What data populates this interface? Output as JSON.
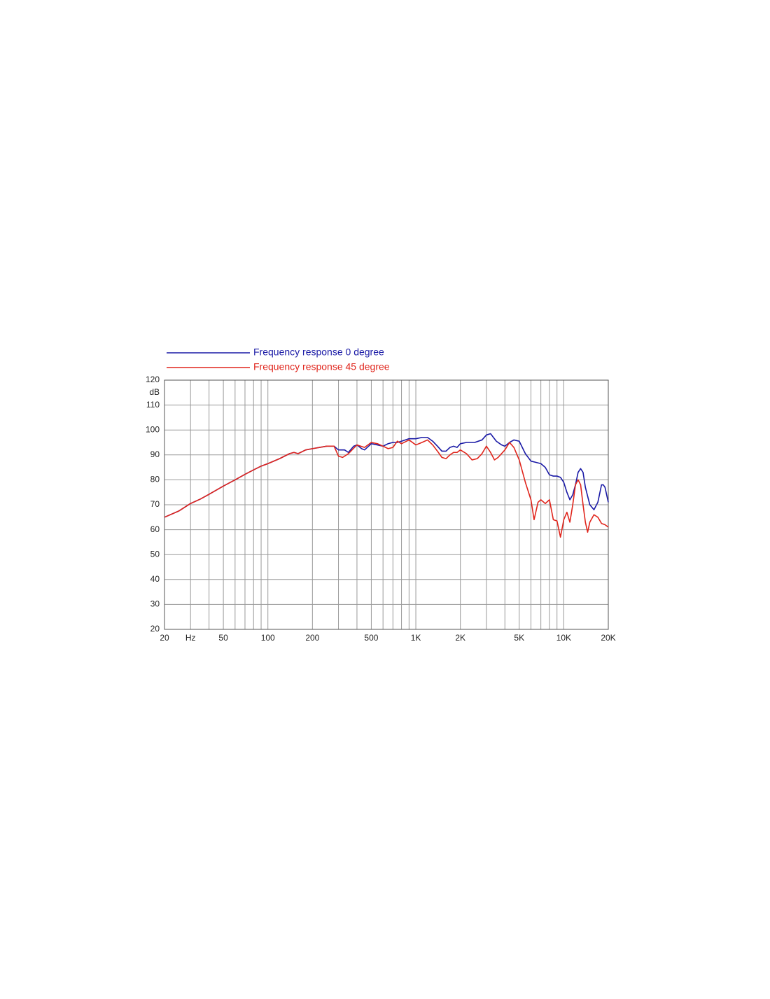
{
  "chart_data": {
    "type": "line",
    "ylabel": "dB",
    "log_x": true,
    "grid": true,
    "xlim": [
      20,
      20000
    ],
    "ylim": [
      20,
      120
    ],
    "xticks": [
      20,
      {
        "value": 30,
        "label": "Hz"
      },
      50,
      100,
      200,
      500,
      {
        "value": 1000,
        "label": "1K"
      },
      {
        "value": 2000,
        "label": "2K"
      },
      {
        "value": 5000,
        "label": "5K"
      },
      {
        "value": 10000,
        "label": "10K"
      },
      {
        "value": 20000,
        "label": "20K"
      }
    ],
    "xgrid_minor": [
      40,
      60,
      70,
      80,
      90,
      300,
      400,
      600,
      700,
      800,
      900,
      3000,
      4000,
      6000,
      7000,
      8000,
      9000
    ],
    "yticks": [
      20,
      30,
      40,
      50,
      60,
      70,
      80,
      90,
      100,
      110,
      120
    ],
    "series": [
      {
        "name": "Frequency response 0 degree",
        "color": "#1a1aa6",
        "x": [
          20,
          25,
          30,
          35,
          40,
          50,
          60,
          70,
          80,
          90,
          100,
          120,
          140,
          150,
          160,
          180,
          200,
          250,
          280,
          300,
          330,
          350,
          380,
          400,
          430,
          450,
          500,
          550,
          600,
          650,
          700,
          750,
          800,
          900,
          1000,
          1100,
          1200,
          1300,
          1400,
          1500,
          1600,
          1700,
          1800,
          1900,
          2000,
          2200,
          2500,
          2800,
          3000,
          3200,
          3500,
          3800,
          4000,
          4300,
          4600,
          5000,
          5500,
          6000,
          6500,
          7000,
          7500,
          8000,
          8500,
          9000,
          9500,
          10000,
          10500,
          11000,
          11500,
          12000,
          12500,
          13000,
          13500,
          14000,
          15000,
          16000,
          17000,
          18000,
          18500,
          19000,
          20000
        ],
        "values": [
          65,
          67.5,
          70.5,
          72.3,
          74.2,
          77.5,
          80,
          82.2,
          84,
          85.5,
          86.5,
          88.5,
          90.5,
          91,
          90.5,
          92,
          92.5,
          93.5,
          93.5,
          92,
          92,
          91,
          93.5,
          94,
          92.5,
          92,
          94.5,
          94,
          93.5,
          94.5,
          95,
          95,
          95.5,
          96.5,
          96.5,
          97,
          97,
          95.5,
          93.5,
          91.5,
          91.5,
          93,
          93.5,
          93,
          94.5,
          95,
          95,
          96,
          98,
          98.5,
          95.5,
          94,
          93.5,
          95,
          96,
          95.5,
          90.5,
          87.5,
          87,
          86.5,
          85,
          82,
          81.5,
          81.5,
          81,
          79,
          75,
          72,
          74,
          78,
          83,
          84.5,
          83,
          77,
          70,
          68,
          71,
          78,
          78,
          77,
          71
        ]
      },
      {
        "name": "Frequency response 45 degree",
        "color": "#e0251c",
        "x": [
          20,
          25,
          30,
          35,
          40,
          50,
          60,
          70,
          80,
          90,
          100,
          120,
          140,
          150,
          160,
          180,
          200,
          250,
          280,
          300,
          320,
          350,
          400,
          450,
          500,
          550,
          600,
          650,
          700,
          750,
          800,
          900,
          1000,
          1100,
          1200,
          1300,
          1400,
          1500,
          1600,
          1700,
          1800,
          1900,
          2000,
          2200,
          2400,
          2600,
          2800,
          3000,
          3200,
          3400,
          3600,
          4000,
          4300,
          4600,
          5000,
          5500,
          6000,
          6300,
          6700,
          7000,
          7500,
          8000,
          8500,
          9000,
          9500,
          10000,
          10500,
          11000,
          11500,
          12000,
          12500,
          13000,
          13500,
          14000,
          14500,
          15000,
          16000,
          17000,
          18000,
          19000,
          20000
        ],
        "values": [
          65,
          67.5,
          70.5,
          72.3,
          74.2,
          77.5,
          80,
          82.2,
          84,
          85.5,
          86.5,
          88.5,
          90.5,
          91,
          90.5,
          92,
          92.5,
          93.5,
          93.5,
          89.5,
          89,
          90.5,
          94,
          93,
          95,
          94.5,
          93.5,
          92.5,
          93,
          95.5,
          94.5,
          96,
          94,
          95,
          96,
          94,
          91.5,
          89,
          88.5,
          90,
          91,
          91,
          92,
          90.5,
          88,
          88.5,
          90.5,
          93.5,
          91,
          88,
          89,
          92,
          95,
          93,
          88,
          79,
          72,
          64,
          71,
          72,
          70.5,
          72,
          64,
          63.5,
          57,
          64,
          67,
          63,
          70,
          78,
          80,
          78,
          70,
          63,
          59,
          63,
          66,
          65,
          62.5,
          62,
          61
        ]
      }
    ]
  }
}
